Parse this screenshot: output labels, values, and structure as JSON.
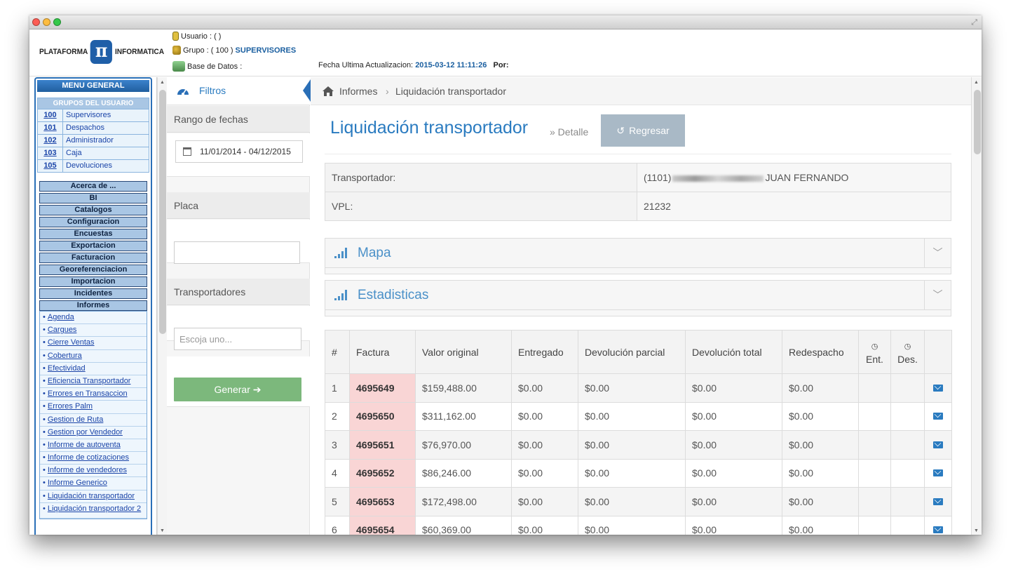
{
  "header": {
    "logo_left": "PLATAFORMA",
    "logo_mark": "π",
    "logo_right": "INFORMATICA",
    "usuario": "Usuario : (        )",
    "grupo_prefix": "Grupo : ( 100 )",
    "grupo_name": "SUPERVISORES",
    "base_datos": "Base de Datos :",
    "fecha_label": "Fecha Ultima Actualizacion:",
    "fecha_value": "2015-03-12 11:11:26",
    "por_label": "Por:"
  },
  "menu": {
    "title": "MENU GENERAL",
    "groups_title": "GRUPOS DEL USUARIO",
    "groups": [
      {
        "num": "100",
        "name": "Supervisores"
      },
      {
        "num": "101",
        "name": "Despachos"
      },
      {
        "num": "102",
        "name": "Administrador"
      },
      {
        "num": "103",
        "name": "Caja"
      },
      {
        "num": "105",
        "name": "Devoluciones"
      }
    ],
    "categories": [
      "Acerca de ...",
      "BI",
      "Catalogos",
      "Configuracion",
      "Encuestas",
      "Exportacion",
      "Facturacion",
      "Georeferenciacion",
      "Importacion",
      "Incidentes",
      "Informes"
    ],
    "informes_items": [
      "Agenda",
      "Cargues",
      "Cierre Ventas",
      "Cobertura",
      "Efectividad",
      "Eficiencia Transportador",
      "Errores en Transaccion",
      "Errores Palm",
      "Gestion de Ruta",
      "Gestion por Vendedor",
      "Informe de autoventa",
      "Informe de cotizaciones",
      "Informe de vendedores",
      "Informe Generico",
      "Liquidación transportador",
      "Liquidación transportador 2"
    ]
  },
  "filters": {
    "title": "Filtros",
    "date_section": "Rango de fechas",
    "date_value": "11/01/2014 - 04/12/2015",
    "placa_section": "Placa",
    "placa_value": "",
    "trans_section": "Transportadores",
    "trans_placeholder": "Escoja uno...",
    "generate_label": "Generar ➔"
  },
  "breadcrumb": {
    "root": "Informes",
    "separator": "›",
    "current": "Liquidación transportador"
  },
  "page": {
    "title": "Liquidación transportador",
    "subtitle": "» Detalle",
    "back_label": "Regresar",
    "back_icon": "undo-icon"
  },
  "info": {
    "transportador_label": "Transportador:",
    "transportador_code": "(1101)",
    "transportador_name": "JUAN FERNANDO",
    "vpl_label": "VPL:",
    "vpl_value": "21232"
  },
  "widgets": {
    "map_title": "Mapa",
    "stats_title": "Estadisticas"
  },
  "table": {
    "headers": [
      "#",
      "Factura",
      "Valor original",
      "Entregado",
      "Devolución parcial",
      "Devolución total",
      "Redespacho",
      "Ent.",
      "Des.",
      ""
    ],
    "rows": [
      {
        "n": "1",
        "factura": "4695649",
        "valor": "$159,488.00",
        "entregado": "$0.00",
        "dparcial": "$0.00",
        "dtotal": "$0.00",
        "redespacho": "$0.00"
      },
      {
        "n": "2",
        "factura": "4695650",
        "valor": "$311,162.00",
        "entregado": "$0.00",
        "dparcial": "$0.00",
        "dtotal": "$0.00",
        "redespacho": "$0.00"
      },
      {
        "n": "3",
        "factura": "4695651",
        "valor": "$76,970.00",
        "entregado": "$0.00",
        "dparcial": "$0.00",
        "dtotal": "$0.00",
        "redespacho": "$0.00"
      },
      {
        "n": "4",
        "factura": "4695652",
        "valor": "$86,246.00",
        "entregado": "$0.00",
        "dparcial": "$0.00",
        "dtotal": "$0.00",
        "redespacho": "$0.00"
      },
      {
        "n": "5",
        "factura": "4695653",
        "valor": "$172,498.00",
        "entregado": "$0.00",
        "dparcial": "$0.00",
        "dtotal": "$0.00",
        "redespacho": "$0.00"
      },
      {
        "n": "6",
        "factura": "4695654",
        "valor": "$60,369.00",
        "entregado": "$0.00",
        "dparcial": "$0.00",
        "dtotal": "$0.00",
        "redespacho": "$0.00"
      }
    ]
  },
  "colors": {
    "accent": "#2a7bc0",
    "menu_blue": "#2a6fb7",
    "generate_green": "#7cb87c",
    "factura_pink": "#f9d5d5",
    "back_gray": "#a9b9c6"
  }
}
